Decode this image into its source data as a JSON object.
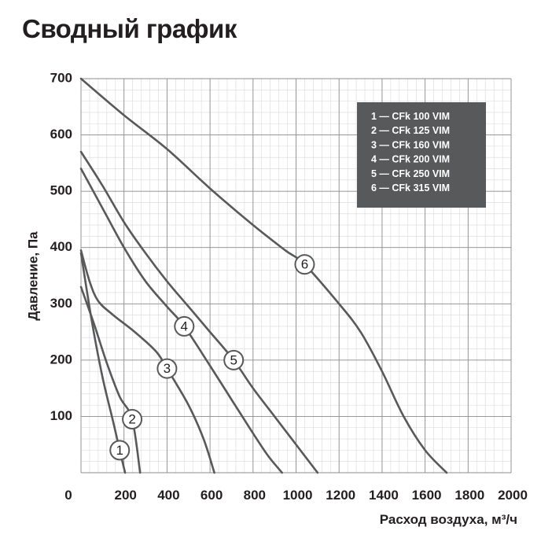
{
  "title": "Сводный график",
  "chart_data": {
    "type": "line",
    "xlabel": "Расход воздуха, м³/ч",
    "ylabel": "Давление, Па",
    "xlim": [
      0,
      2000
    ],
    "ylim": [
      0,
      700
    ],
    "x_ticks": [
      "0",
      "200",
      "400",
      "600",
      "800",
      "1000",
      "1200",
      "1400",
      "1600",
      "1800",
      "2000"
    ],
    "y_ticks": [
      "100",
      "200",
      "300",
      "400",
      "500",
      "600",
      "700"
    ],
    "grid": true,
    "legend_position": "top-right",
    "series": [
      {
        "name": "1 — CFk 100 VIM",
        "marker": "1",
        "marker_at": [
          180,
          40
        ],
        "points": [
          [
            0,
            390
          ],
          [
            50,
            270
          ],
          [
            100,
            170
          ],
          [
            150,
            90
          ],
          [
            180,
            40
          ],
          [
            205,
            0
          ]
        ]
      },
      {
        "name": "2 — CFk 125 VIM",
        "marker": "2",
        "marker_at": [
          238,
          95
        ],
        "points": [
          [
            0,
            330
          ],
          [
            60,
            265
          ],
          [
            120,
            195
          ],
          [
            180,
            135
          ],
          [
            238,
            95
          ],
          [
            275,
            0
          ]
        ]
      },
      {
        "name": "3 — CFk 160 VIM",
        "marker": "3",
        "marker_at": [
          400,
          185
        ],
        "points": [
          [
            0,
            395
          ],
          [
            40,
            340
          ],
          [
            80,
            305
          ],
          [
            150,
            280
          ],
          [
            250,
            250
          ],
          [
            350,
            215
          ],
          [
            400,
            185
          ],
          [
            500,
            120
          ],
          [
            570,
            60
          ],
          [
            620,
            0
          ]
        ]
      },
      {
        "name": "4 — CFk 200 VIM",
        "marker": "4",
        "marker_at": [
          480,
          260
        ],
        "points": [
          [
            0,
            540
          ],
          [
            100,
            470
          ],
          [
            200,
            400
          ],
          [
            300,
            340
          ],
          [
            400,
            295
          ],
          [
            480,
            260
          ],
          [
            600,
            190
          ],
          [
            700,
            130
          ],
          [
            800,
            70
          ],
          [
            870,
            30
          ],
          [
            935,
            0
          ]
        ]
      },
      {
        "name": "5 — CFk 250 VIM",
        "marker": "5",
        "marker_at": [
          710,
          200
        ],
        "points": [
          [
            0,
            570
          ],
          [
            100,
            510
          ],
          [
            200,
            445
          ],
          [
            300,
            390
          ],
          [
            400,
            340
          ],
          [
            500,
            295
          ],
          [
            600,
            250
          ],
          [
            710,
            200
          ],
          [
            800,
            150
          ],
          [
            900,
            100
          ],
          [
            1000,
            50
          ],
          [
            1100,
            0
          ]
        ]
      },
      {
        "name": "6 — CFk 315 VIM",
        "marker": "6",
        "marker_at": [
          1040,
          370
        ],
        "points": [
          [
            0,
            700
          ],
          [
            200,
            635
          ],
          [
            400,
            575
          ],
          [
            600,
            505
          ],
          [
            800,
            440
          ],
          [
            950,
            395
          ],
          [
            1040,
            370
          ],
          [
            1200,
            300
          ],
          [
            1300,
            250
          ],
          [
            1400,
            180
          ],
          [
            1500,
            100
          ],
          [
            1600,
            40
          ],
          [
            1700,
            0
          ]
        ]
      }
    ]
  }
}
